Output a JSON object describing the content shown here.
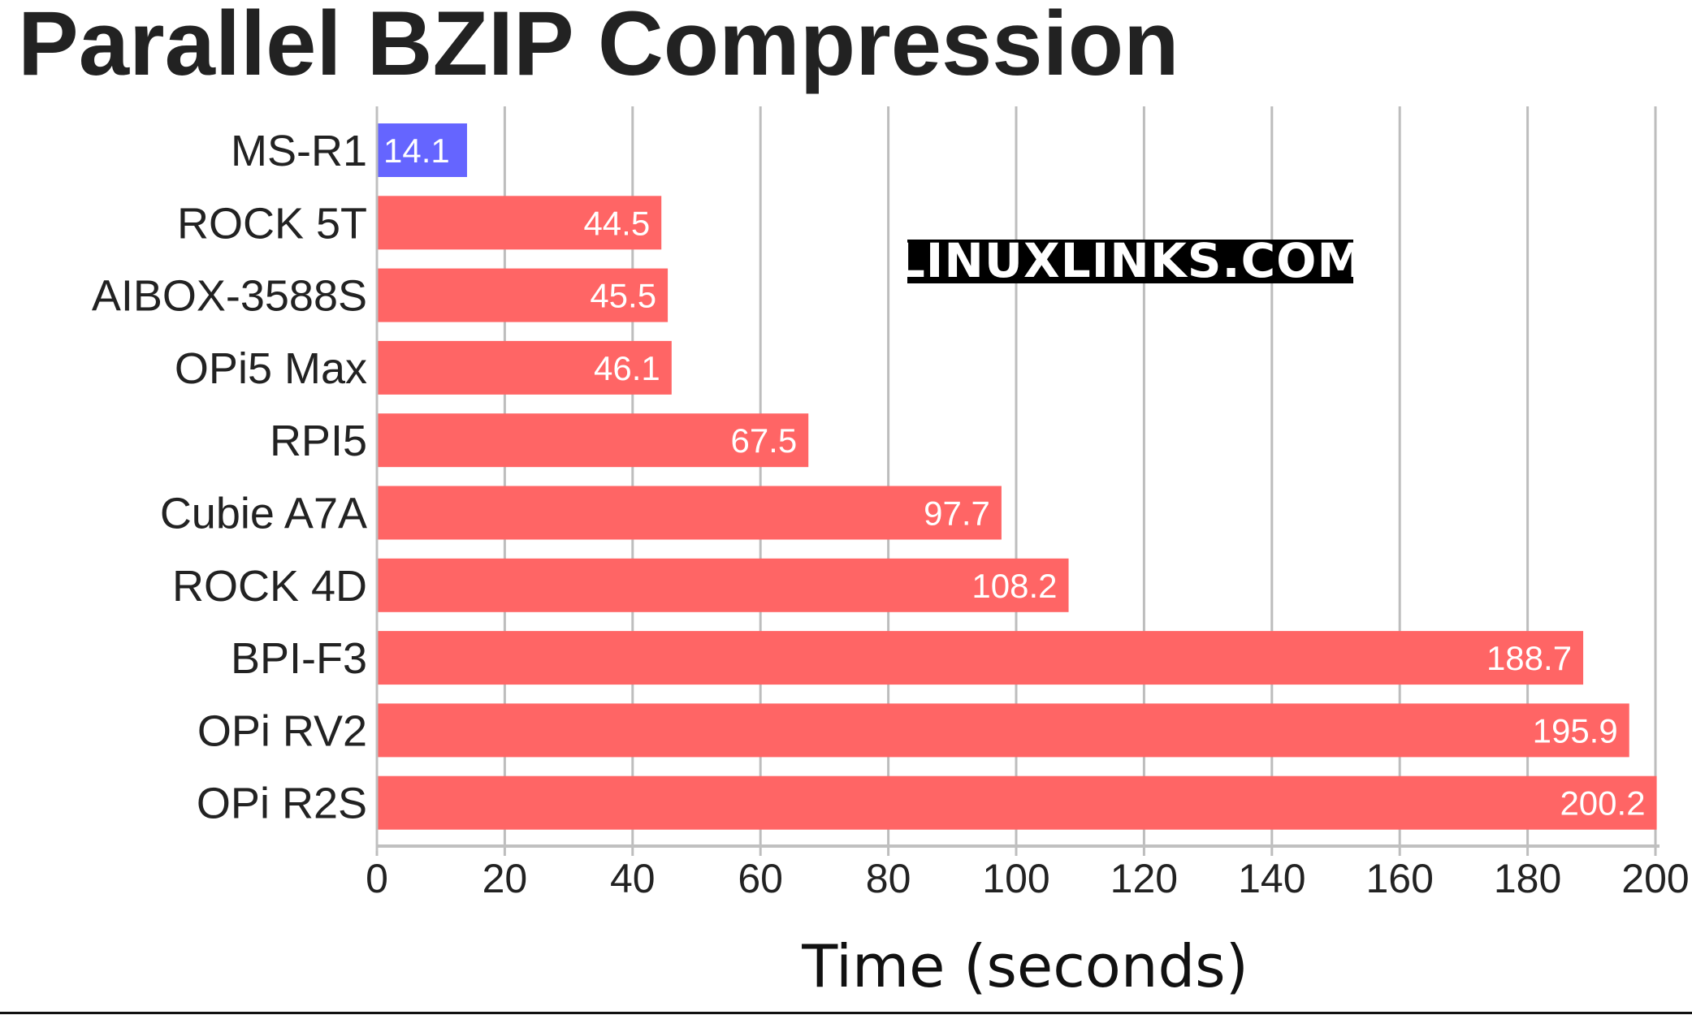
{
  "chart_data": {
    "type": "bar",
    "orientation": "horizontal",
    "title": "Parallel BZIP Compression",
    "xlabel": "Time (seconds)",
    "ylabel": "",
    "xlim": [
      0,
      200
    ],
    "xticks": [
      0,
      20,
      40,
      60,
      80,
      100,
      120,
      140,
      160,
      180,
      200
    ],
    "grid": "vertical",
    "categories": [
      "MS-R1",
      "ROCK 5T",
      "AIBOX-3588S",
      "OPi5 Max",
      "RPI5",
      "Cubie A7A",
      "ROCK 4D",
      "BPI-F3",
      "OPi RV2",
      "OPi R2S"
    ],
    "values": [
      14.1,
      44.5,
      45.5,
      46.1,
      67.5,
      97.7,
      108.2,
      188.7,
      195.9,
      200.2
    ],
    "value_labels": [
      "14.1",
      "44.5",
      "45.5",
      "46.1",
      "67.5",
      "97.7",
      "108.2",
      "188.7",
      "195.9",
      "200.2"
    ],
    "bar_colors": [
      "#6565ff",
      "#ff6565",
      "#ff6565",
      "#ff6565",
      "#ff6565",
      "#ff6565",
      "#ff6565",
      "#ff6565",
      "#ff6565",
      "#ff6565"
    ],
    "grid_color": "#bdbdbd",
    "axis_color": "#c0c0c0",
    "watermark": "LINUXLINKS.COM"
  }
}
